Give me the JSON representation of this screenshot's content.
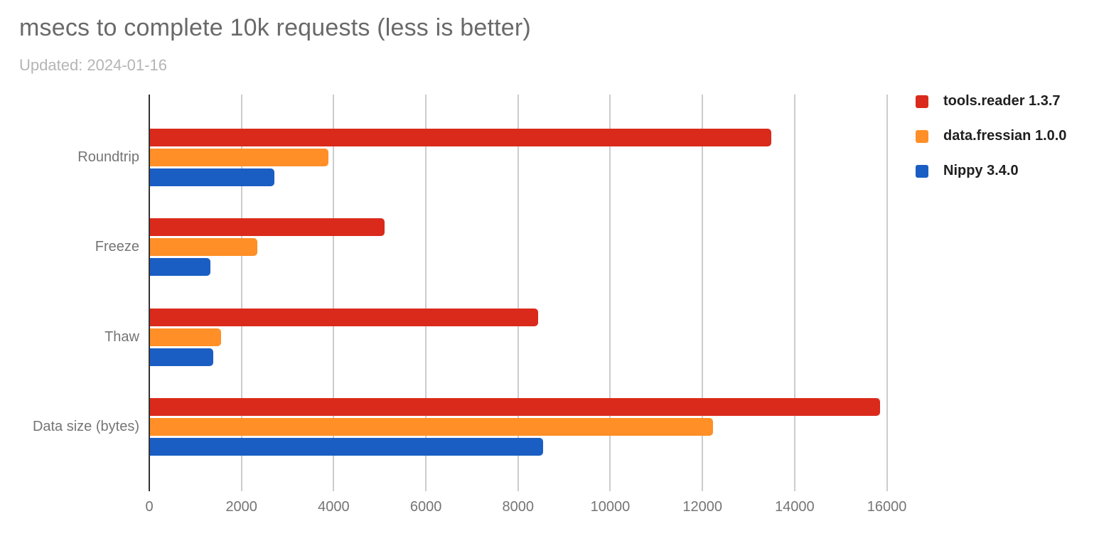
{
  "header": {
    "title": "msecs to complete 10k requests (less is better)",
    "subtitle": "Updated: 2024-01-16"
  },
  "chart_data": {
    "type": "bar",
    "orientation": "horizontal",
    "title": "msecs to complete 10k requests (less is better)",
    "subtitle": "Updated: 2024-01-16",
    "categories": [
      "Roundtrip",
      "Freeze",
      "Thaw",
      "Data size (bytes)"
    ],
    "series": [
      {
        "name": "tools.reader 1.3.7",
        "color": "#da2a1b",
        "values": [
          13500,
          5100,
          8430,
          15860
        ]
      },
      {
        "name": "data.fressian 1.0.0",
        "color": "#ff8f26",
        "values": [
          3890,
          2350,
          1560,
          12230
        ]
      },
      {
        "name": "Nippy 3.4.0",
        "color": "#1a5ec4",
        "values": [
          2710,
          1330,
          1390,
          8540
        ]
      }
    ],
    "xaxis": {
      "min": 0,
      "max": 16500,
      "ticks": [
        0,
        2000,
        4000,
        6000,
        8000,
        10000,
        12000,
        14000,
        16000
      ]
    },
    "ylabel": "",
    "xlabel": "",
    "grid": true,
    "legend_position": "right"
  },
  "colors": {
    "axis": "#333333",
    "gridline": "#cccccc",
    "title_text": "#696969",
    "subtitle_text": "#b5b5b5",
    "label_text": "#757575",
    "legend_text": "#1f1f1f"
  }
}
